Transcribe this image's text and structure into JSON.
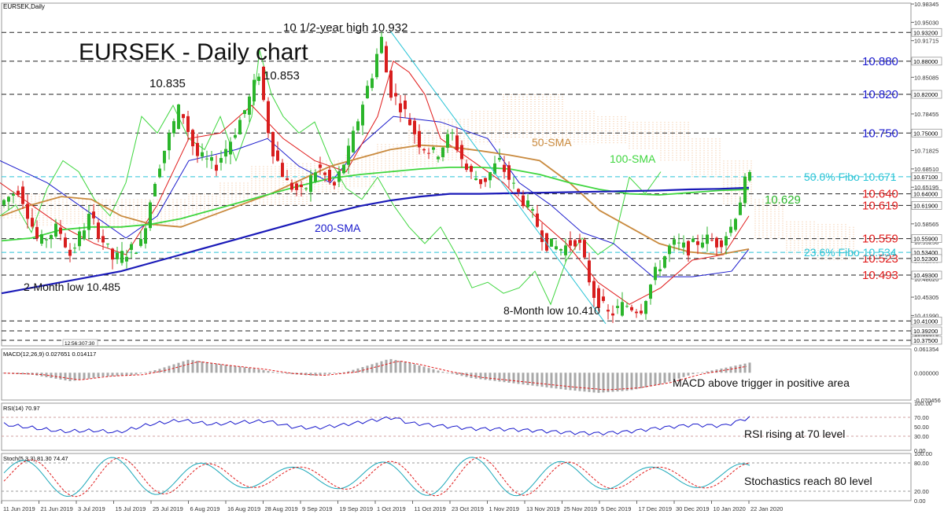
{
  "chart_data": {
    "type": "candlestick",
    "instrument_label": "EURSEK,Daily",
    "title": "EURSEK - Daily chart",
    "y_range": [
      10.365,
      10.985
    ],
    "y_axis_ticks": [
      {
        "label": "10.98345",
        "value": 10.98345
      },
      {
        "label": "10.95030",
        "value": 10.9503
      },
      {
        "label": "10.91715",
        "value": 10.91715
      },
      {
        "label": "10.88400",
        "value": 10.884
      },
      {
        "label": "10.85085",
        "value": 10.85085
      },
      {
        "label": "10.81770",
        "value": 10.8177
      },
      {
        "label": "10.78455",
        "value": 10.78455
      },
      {
        "label": "10.75140",
        "value": 10.7514
      },
      {
        "label": "10.71825",
        "value": 10.71825
      },
      {
        "label": "10.68510",
        "value": 10.6851
      },
      {
        "label": "10.65195",
        "value": 10.65195
      },
      {
        "label": "10.61880",
        "value": 10.6188
      },
      {
        "label": "10.58565",
        "value": 10.58565
      },
      {
        "label": "10.55250",
        "value": 10.5525
      },
      {
        "label": "10.51935",
        "value": 10.51935
      },
      {
        "label": "10.48620",
        "value": 10.4862
      },
      {
        "label": "10.45305",
        "value": 10.45305
      },
      {
        "label": "10.41990",
        "value": 10.4199
      },
      {
        "label": "10.38675",
        "value": 10.38675
      }
    ],
    "price_tags": [
      {
        "label": "10.93200",
        "value": 10.932
      },
      {
        "label": "10.88000",
        "value": 10.88
      },
      {
        "label": "10.82000",
        "value": 10.82
      },
      {
        "label": "10.75000",
        "value": 10.75
      },
      {
        "label": "10.67100",
        "value": 10.671
      },
      {
        "label": "10.64000",
        "value": 10.64
      },
      {
        "label": "10.61900",
        "value": 10.619
      },
      {
        "label": "10.55900",
        "value": 10.559
      },
      {
        "label": "10.53400",
        "value": 10.534
      },
      {
        "label": "10.52300",
        "value": 10.523
      },
      {
        "label": "10.49300",
        "value": 10.493
      },
      {
        "label": "10.41000",
        "value": 10.41
      },
      {
        "label": "10.39200",
        "value": 10.392
      },
      {
        "label": "10.37500",
        "value": 10.375
      }
    ],
    "x_labels": [
      "11 Jun 2019",
      "21 Jun 2019",
      "3 Jul 2019",
      "15 Jul 2019",
      "25 Jul 2019",
      "6 Aug 2019",
      "16 Aug 2019",
      "28 Aug 2019",
      "9 Sep 2019",
      "19 Sep 2019",
      "1 Oct 2019",
      "11 Oct 2019",
      "23 Oct 2019",
      "1 Nov 2019",
      "13 Nov 2019",
      "25 Nov 2019",
      "5 Dec 2019",
      "17 Dec 2019",
      "30 Dec 2019",
      "10 Jan 2020",
      "22 Jan 2020"
    ],
    "time_marker_label": "12:56:3",
    "time_marker_label2": "07:30",
    "resistance_levels": [
      {
        "label": "10.880",
        "value": 10.88,
        "color": "#1a1acc"
      },
      {
        "label": "10.820",
        "value": 10.82,
        "color": "#1a1acc"
      },
      {
        "label": "10.750",
        "value": 10.75,
        "color": "#1a1acc"
      },
      {
        "label": "10.640",
        "value": 10.64,
        "color": "#e01b1b"
      },
      {
        "label": "10.619",
        "value": 10.619,
        "color": "#e01b1b"
      },
      {
        "label": "10.559",
        "value": 10.559,
        "color": "#e01b1b"
      },
      {
        "label": "10.523",
        "value": 10.523,
        "color": "#e01b1b"
      },
      {
        "label": "10.493",
        "value": 10.493,
        "color": "#e01b1b"
      }
    ],
    "fibo_levels": [
      {
        "label": "50.0% Fibo 10.671",
        "value": 10.671,
        "color": "#29c4d6"
      },
      {
        "label": "23.6% Fibo 10.534",
        "value": 10.534,
        "color": "#29c4d6"
      }
    ],
    "annotations": [
      {
        "text": "10 1/2-year high 10.932"
      },
      {
        "text": "10.835"
      },
      {
        "text": "10.853"
      },
      {
        "text": "2-Month low 10.485"
      },
      {
        "text": "8-Month low 10.410"
      },
      {
        "text": "10.629"
      },
      {
        "text": "50-SMA"
      },
      {
        "text": "100-SMA"
      },
      {
        "text": "200-SMA"
      }
    ],
    "series": [
      {
        "name": "50-SMA",
        "color": "#c98a3e",
        "values": [
          10.6,
          10.62,
          10.635,
          10.63,
          10.6,
          10.585,
          10.58,
          10.6,
          10.62,
          10.64,
          10.665,
          10.69,
          10.705,
          10.72,
          10.728,
          10.725,
          10.718,
          10.71,
          10.7,
          10.66,
          10.61,
          10.58,
          10.55,
          10.535,
          10.53,
          10.54
        ]
      },
      {
        "name": "100-SMA",
        "color": "#3fd63f",
        "values": [
          10.555,
          10.56,
          10.575,
          10.58,
          10.58,
          10.585,
          10.595,
          10.61,
          10.625,
          10.64,
          10.655,
          10.668,
          10.675,
          10.68,
          10.685,
          10.688,
          10.688,
          10.685,
          10.675,
          10.66,
          10.648,
          10.64,
          10.638,
          10.642,
          10.646,
          10.648
        ]
      },
      {
        "name": "200-SMA",
        "color": "#1a1ab8",
        "values": [
          10.46,
          10.47,
          10.48,
          10.49,
          10.5,
          10.515,
          10.53,
          10.545,
          10.56,
          10.575,
          10.59,
          10.605,
          10.618,
          10.628,
          10.635,
          10.64,
          10.64,
          10.641,
          10.642,
          10.643,
          10.644,
          10.645,
          10.646,
          10.648,
          10.649,
          10.651
        ]
      }
    ]
  },
  "macd_panel": {
    "label": "MACD(12,26,9) 0.027651 0.014117",
    "ticks": [
      {
        "label": "0.061354",
        "value": 0.061354
      },
      {
        "label": "0.000000",
        "value": 0.0
      },
      {
        "label": "-0.070456",
        "value": -0.070456
      }
    ],
    "annotation": "MACD above trigger in positive area"
  },
  "rsi_panel": {
    "label": "RSI(14) 70.97",
    "ticks": [
      {
        "label": "100.00",
        "value": 100
      },
      {
        "label": "70.00",
        "value": 70
      },
      {
        "label": "50.00",
        "value": 50
      },
      {
        "label": "30.00",
        "value": 30
      },
      {
        "label": "0.00",
        "value": 0
      }
    ],
    "annotation": "RSI rising at 70 level"
  },
  "stoch_panel": {
    "label": "Stoch(5,3,3) 81.30 74.47",
    "ticks": [
      {
        "label": "100.00",
        "value": 100
      },
      {
        "label": "80.00",
        "value": 80
      },
      {
        "label": "20.00",
        "value": 20
      },
      {
        "label": "0.00",
        "value": 0
      }
    ],
    "annotation": "Stochastics reach 80 level"
  },
  "colors": {
    "bull": "#2bb52b",
    "bear": "#d81e1e",
    "kijun": "#1a1acc",
    "tenkan": "#e01b1b",
    "chikou": "#3fd63f",
    "cloud": "#f0b07a",
    "signal": "#e01b1b",
    "grid": "#c8c8c8",
    "axis_text": "#333333"
  }
}
